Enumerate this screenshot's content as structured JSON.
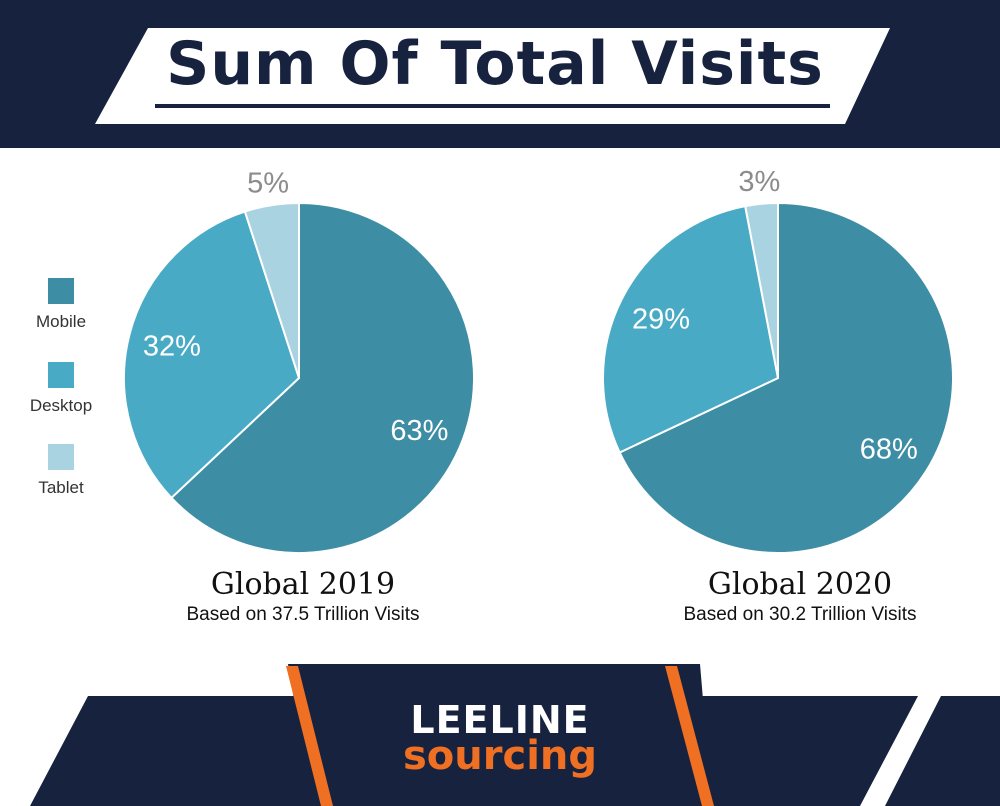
{
  "header": {
    "title": "Sum Of Total Visits"
  },
  "legend": {
    "items": [
      {
        "label": "Mobile",
        "color": "#3d8da5"
      },
      {
        "label": "Desktop",
        "color": "#49aac6"
      },
      {
        "label": "Tablet",
        "color": "#a9d3e0"
      }
    ]
  },
  "chart_data": [
    {
      "type": "pie",
      "title": "Global 2019",
      "subtitle": "Based on 37.5 Trillion Visits",
      "categories": [
        "Mobile",
        "Desktop",
        "Tablet"
      ],
      "values": [
        63,
        32,
        5
      ],
      "labels": [
        "63%",
        "32%",
        "5%"
      ],
      "colors": [
        "#3d8da5",
        "#49aac6",
        "#a9d3e0"
      ],
      "legend_position": "left"
    },
    {
      "type": "pie",
      "title": "Global 2020",
      "subtitle": "Based on 30.2 Trillion Visits",
      "categories": [
        "Mobile",
        "Desktop",
        "Tablet"
      ],
      "values": [
        68,
        29,
        3
      ],
      "labels": [
        "68%",
        "29%",
        "3%"
      ],
      "colors": [
        "#3d8da5",
        "#49aac6",
        "#a9d3e0"
      ]
    }
  ],
  "footer": {
    "logo_line1": "LEELINE",
    "logo_line2": "sourcing",
    "colors": {
      "navy": "#17223f",
      "orange": "#ef6f23"
    }
  }
}
